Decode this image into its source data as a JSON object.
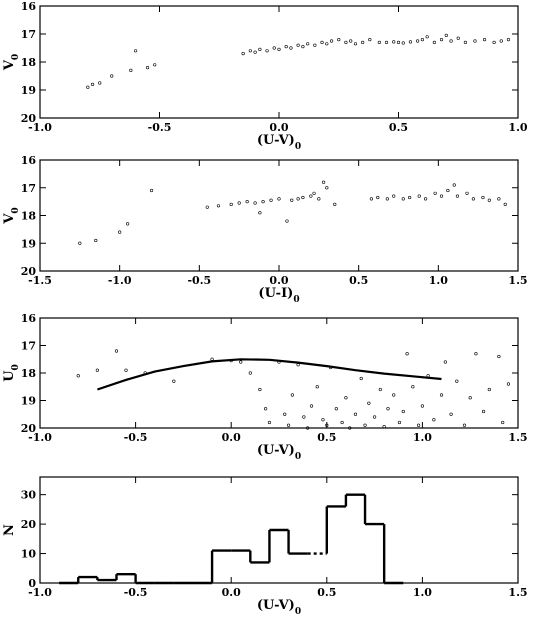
{
  "chart_data": [
    {
      "type": "scatter",
      "ylabel": "V",
      "ylabel_sub": "0",
      "xlabel": "(U-V)",
      "xlabel_sub": "0",
      "xlim": [
        -1.0,
        1.0
      ],
      "ylim": [
        20,
        16
      ],
      "xticks": [
        "-1.0",
        "-0.5",
        "0.0",
        "0.5",
        "1.0"
      ],
      "yticks": [
        "16",
        "17",
        "18",
        "19",
        "20"
      ],
      "points": [
        [
          -0.8,
          18.9
        ],
        [
          -0.78,
          18.8
        ],
        [
          -0.75,
          18.75
        ],
        [
          -0.7,
          18.5
        ],
        [
          -0.62,
          18.3
        ],
        [
          -0.6,
          17.6
        ],
        [
          -0.55,
          18.2
        ],
        [
          -0.52,
          18.1
        ],
        [
          -0.15,
          17.7
        ],
        [
          -0.12,
          17.6
        ],
        [
          -0.1,
          17.65
        ],
        [
          -0.08,
          17.55
        ],
        [
          -0.05,
          17.6
        ],
        [
          -0.02,
          17.5
        ],
        [
          0.0,
          17.55
        ],
        [
          0.03,
          17.45
        ],
        [
          0.05,
          17.5
        ],
        [
          0.08,
          17.4
        ],
        [
          0.1,
          17.45
        ],
        [
          0.12,
          17.35
        ],
        [
          0.15,
          17.4
        ],
        [
          0.18,
          17.3
        ],
        [
          0.2,
          17.35
        ],
        [
          0.22,
          17.25
        ],
        [
          0.25,
          17.2
        ],
        [
          0.28,
          17.3
        ],
        [
          0.3,
          17.25
        ],
        [
          0.32,
          17.35
        ],
        [
          0.35,
          17.3
        ],
        [
          0.38,
          17.2
        ],
        [
          0.42,
          17.3
        ],
        [
          0.45,
          17.3
        ],
        [
          0.48,
          17.28
        ],
        [
          0.5,
          17.3
        ],
        [
          0.52,
          17.32
        ],
        [
          0.55,
          17.28
        ],
        [
          0.58,
          17.25
        ],
        [
          0.6,
          17.2
        ],
        [
          0.62,
          17.1
        ],
        [
          0.65,
          17.3
        ],
        [
          0.68,
          17.2
        ],
        [
          0.7,
          17.05
        ],
        [
          0.72,
          17.25
        ],
        [
          0.75,
          17.15
        ],
        [
          0.78,
          17.3
        ],
        [
          0.82,
          17.25
        ],
        [
          0.86,
          17.2
        ],
        [
          0.9,
          17.3
        ],
        [
          0.93,
          17.25
        ],
        [
          0.96,
          17.2
        ]
      ]
    },
    {
      "type": "scatter",
      "ylabel": "V",
      "ylabel_sub": "0",
      "xlabel": "(U-I)",
      "xlabel_sub": "0",
      "xlim": [
        -1.5,
        1.5
      ],
      "ylim": [
        20,
        16
      ],
      "xticks": [
        "-1.5",
        "-1.0",
        "-0.5",
        "0.0",
        "0.5",
        "1.0",
        "1.5"
      ],
      "yticks": [
        "16",
        "17",
        "18",
        "19",
        "20"
      ],
      "points": [
        [
          -1.25,
          19.0
        ],
        [
          -1.15,
          18.9
        ],
        [
          -1.0,
          18.6
        ],
        [
          -0.95,
          18.3
        ],
        [
          -0.8,
          17.1
        ],
        [
          -0.45,
          17.7
        ],
        [
          -0.38,
          17.65
        ],
        [
          -0.3,
          17.6
        ],
        [
          -0.25,
          17.55
        ],
        [
          -0.2,
          17.5
        ],
        [
          -0.15,
          17.55
        ],
        [
          -0.12,
          17.9
        ],
        [
          -0.1,
          17.5
        ],
        [
          -0.05,
          17.45
        ],
        [
          0.0,
          17.4
        ],
        [
          0.05,
          18.2
        ],
        [
          0.08,
          17.45
        ],
        [
          0.12,
          17.4
        ],
        [
          0.15,
          17.35
        ],
        [
          0.2,
          17.3
        ],
        [
          0.22,
          17.2
        ],
        [
          0.25,
          17.4
        ],
        [
          0.28,
          16.8
        ],
        [
          0.3,
          17.0
        ],
        [
          0.35,
          17.6
        ],
        [
          0.58,
          17.4
        ],
        [
          0.62,
          17.35
        ],
        [
          0.68,
          17.4
        ],
        [
          0.72,
          17.3
        ],
        [
          0.78,
          17.4
        ],
        [
          0.82,
          17.35
        ],
        [
          0.88,
          17.3
        ],
        [
          0.92,
          17.4
        ],
        [
          0.98,
          17.2
        ],
        [
          1.02,
          17.3
        ],
        [
          1.06,
          17.1
        ],
        [
          1.1,
          16.9
        ],
        [
          1.12,
          17.3
        ],
        [
          1.18,
          17.2
        ],
        [
          1.22,
          17.4
        ],
        [
          1.28,
          17.35
        ],
        [
          1.32,
          17.45
        ],
        [
          1.38,
          17.4
        ],
        [
          1.42,
          17.6
        ]
      ]
    },
    {
      "type": "scatter",
      "ylabel": "U",
      "ylabel_sub": "0",
      "xlabel": "(U-V)",
      "xlabel_sub": "0",
      "xlim": [
        -1.0,
        1.5
      ],
      "ylim": [
        20,
        16
      ],
      "xticks": [
        "-1.0",
        "-0.5",
        "0.0",
        "0.5",
        "1.0",
        "1.5"
      ],
      "yticks": [
        "16",
        "17",
        "18",
        "19",
        "20"
      ],
      "fit_line": [
        [
          -0.7,
          18.6
        ],
        [
          -0.55,
          18.25
        ],
        [
          -0.4,
          17.95
        ],
        [
          -0.25,
          17.75
        ],
        [
          -0.1,
          17.58
        ],
        [
          0.05,
          17.5
        ],
        [
          0.2,
          17.52
        ],
        [
          0.35,
          17.62
        ],
        [
          0.5,
          17.75
        ],
        [
          0.65,
          17.9
        ],
        [
          0.8,
          18.02
        ],
        [
          0.95,
          18.12
        ],
        [
          1.1,
          18.22
        ]
      ],
      "points": [
        [
          -0.8,
          18.1
        ],
        [
          -0.7,
          17.9
        ],
        [
          -0.6,
          17.2
        ],
        [
          -0.55,
          17.9
        ],
        [
          -0.45,
          18.0
        ],
        [
          -0.3,
          18.3
        ],
        [
          -0.1,
          17.5
        ],
        [
          0.0,
          17.55
        ],
        [
          0.05,
          17.6
        ],
        [
          0.1,
          18.0
        ],
        [
          0.15,
          18.6
        ],
        [
          0.18,
          19.3
        ],
        [
          0.2,
          19.8
        ],
        [
          0.25,
          17.6
        ],
        [
          0.28,
          19.5
        ],
        [
          0.3,
          19.9
        ],
        [
          0.32,
          18.8
        ],
        [
          0.35,
          17.7
        ],
        [
          0.38,
          19.6
        ],
        [
          0.4,
          20.0
        ],
        [
          0.42,
          19.2
        ],
        [
          0.45,
          18.5
        ],
        [
          0.48,
          19.7
        ],
        [
          0.5,
          19.9
        ],
        [
          0.52,
          17.8
        ],
        [
          0.55,
          19.3
        ],
        [
          0.58,
          19.8
        ],
        [
          0.6,
          18.9
        ],
        [
          0.62,
          20.0
        ],
        [
          0.65,
          19.5
        ],
        [
          0.68,
          18.2
        ],
        [
          0.7,
          19.9
        ],
        [
          0.72,
          19.1
        ],
        [
          0.75,
          19.6
        ],
        [
          0.78,
          18.6
        ],
        [
          0.8,
          19.95
        ],
        [
          0.82,
          19.3
        ],
        [
          0.85,
          18.8
        ],
        [
          0.88,
          19.8
        ],
        [
          0.9,
          19.4
        ],
        [
          0.92,
          17.3
        ],
        [
          0.95,
          18.5
        ],
        [
          0.98,
          19.9
        ],
        [
          1.0,
          19.2
        ],
        [
          1.03,
          18.1
        ],
        [
          1.06,
          19.7
        ],
        [
          1.1,
          18.8
        ],
        [
          1.12,
          17.6
        ],
        [
          1.15,
          19.5
        ],
        [
          1.18,
          18.3
        ],
        [
          1.22,
          19.9
        ],
        [
          1.25,
          18.9
        ],
        [
          1.28,
          17.3
        ],
        [
          1.32,
          19.4
        ],
        [
          1.35,
          18.6
        ],
        [
          1.4,
          17.4
        ],
        [
          1.42,
          19.8
        ],
        [
          1.45,
          18.4
        ]
      ]
    },
    {
      "type": "histogram",
      "ylabel": "N",
      "xlabel": "(U-V)",
      "xlabel_sub": "0",
      "xlim": [
        -1.0,
        1.5
      ],
      "ylim": [
        0,
        36
      ],
      "xticks": [
        "-1.0",
        "-0.5",
        "0.0",
        "0.5",
        "1.0",
        "1.5"
      ],
      "yticks": [
        "0",
        "10",
        "20",
        "30"
      ],
      "bin_edges": [
        -0.9,
        -0.8,
        -0.7,
        -0.6,
        -0.5,
        -0.4,
        -0.3,
        -0.2,
        -0.1,
        0.0,
        0.1,
        0.2,
        0.3,
        0.4,
        0.5,
        0.6,
        0.7,
        0.8
      ],
      "counts": [
        0,
        2,
        1,
        3,
        0,
        0,
        0,
        0,
        11,
        11,
        7,
        18,
        10,
        10,
        26,
        30,
        20,
        0
      ],
      "dotted_bins": [
        13
      ]
    }
  ]
}
